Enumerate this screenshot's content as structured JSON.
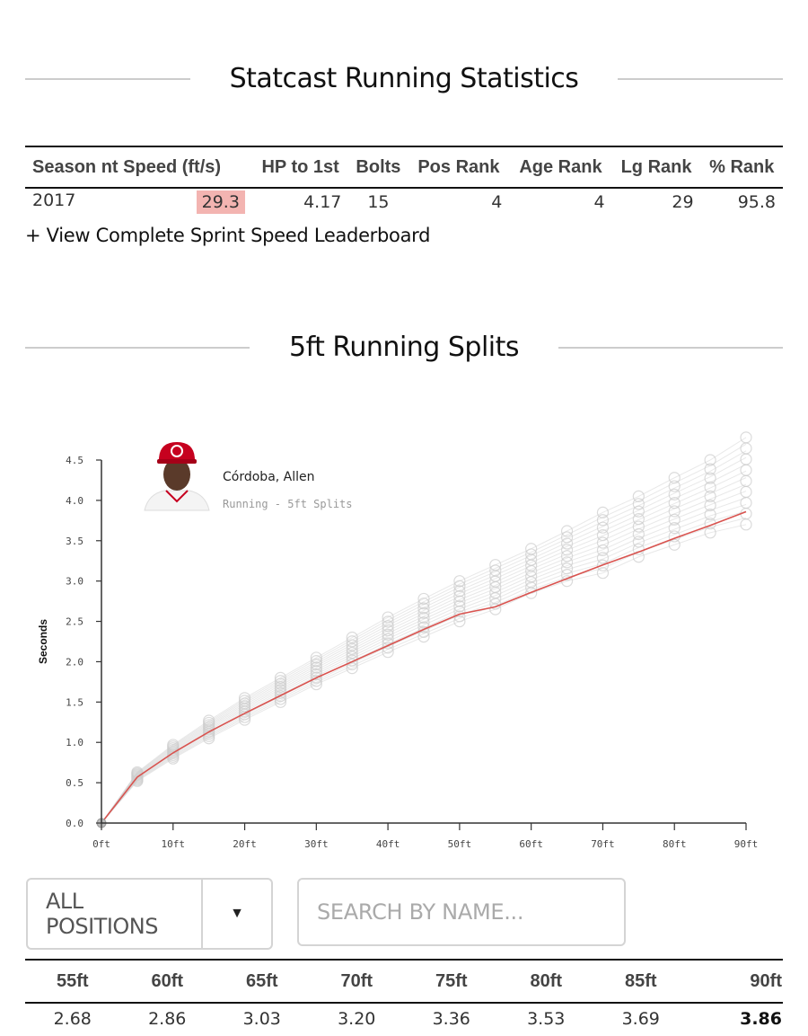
{
  "running_stats": {
    "title": "Statcast Running Statistics",
    "columns": [
      "Season",
      "nt Speed (ft/s)",
      "HP to 1st",
      "Bolts",
      "Pos Rank",
      "Age Rank",
      "Lg Rank",
      "% Rank"
    ],
    "row": {
      "season": "2017",
      "sprint_speed": "29.3",
      "hp_to_1st": "4.17",
      "bolts": "15",
      "pos_rank": "4",
      "age_rank": "4",
      "lg_rank": "29",
      "pct_rank": "95.8"
    },
    "highlight_color": "#f3b4b1",
    "leaderboard_link": "+ View Complete Sprint Speed Leaderboard"
  },
  "splits": {
    "title": "5ft Running Splits",
    "player_name": "Córdoba, Allen",
    "chart_subtitle": "Running - 5ft Splits",
    "avatar_icon": "player-headshot-icon",
    "filter": {
      "selected": "ALL POSITIONS",
      "arrow": "▼"
    },
    "search": {
      "placeholder": "SEARCH BY NAME..."
    },
    "table": {
      "headers": [
        "55ft",
        "60ft",
        "65ft",
        "70ft",
        "75ft",
        "80ft",
        "85ft",
        "90ft"
      ],
      "values": [
        "2.68",
        "2.86",
        "3.03",
        "3.20",
        "3.36",
        "3.53",
        "3.69",
        "3.86"
      ]
    }
  },
  "chart_data": {
    "type": "line",
    "ylabel": "Seconds",
    "xlabel": "",
    "ylim": [
      0,
      4.5
    ],
    "xlim": [
      0,
      90
    ],
    "x": [
      0,
      5,
      10,
      15,
      20,
      25,
      30,
      35,
      40,
      45,
      50,
      55,
      60,
      65,
      70,
      75,
      80,
      85,
      90
    ],
    "x_tick_values": [
      0,
      10,
      20,
      30,
      40,
      50,
      60,
      70,
      80,
      90
    ],
    "x_tick_labels": [
      "0ft",
      "10ft",
      "20ft",
      "30ft",
      "40ft",
      "50ft",
      "60ft",
      "70ft",
      "80ft",
      "90ft"
    ],
    "y_tick_values": [
      0,
      0.5,
      1.0,
      1.5,
      2.0,
      2.5,
      3.0,
      3.5,
      4.0,
      4.5
    ],
    "y_tick_labels": [
      "0.0",
      "0.5",
      "1.0",
      "1.5",
      "2.0",
      "2.5",
      "3.0",
      "3.5",
      "4.0",
      "4.5"
    ],
    "grid": false,
    "series": [
      {
        "color": "#d9534f",
        "values": [
          0,
          0.57,
          0.87,
          1.13,
          1.36,
          1.58,
          1.8,
          2.0,
          2.2,
          2.4,
          2.59,
          2.68,
          2.86,
          3.03,
          3.2,
          3.36,
          3.53,
          3.69,
          3.86
        ]
      }
    ],
    "league_distribution": {
      "color": "#cccccc",
      "min": [
        0,
        0.52,
        0.8,
        1.05,
        1.28,
        1.5,
        1.72,
        1.92,
        2.12,
        2.31,
        2.5,
        2.65,
        2.85,
        3.0,
        3.1,
        3.3,
        3.45,
        3.6,
        3.7
      ],
      "max": [
        0,
        0.63,
        0.97,
        1.27,
        1.55,
        1.8,
        2.05,
        2.3,
        2.55,
        2.78,
        3.0,
        3.2,
        3.4,
        3.62,
        3.85,
        4.05,
        4.28,
        4.5,
        4.78
      ]
    }
  }
}
